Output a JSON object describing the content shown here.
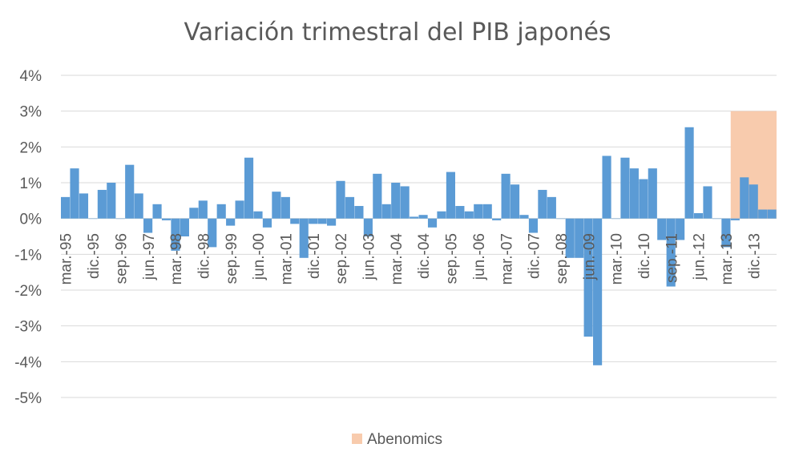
{
  "chart_data": {
    "type": "bar",
    "title": "Variación trimestral del PIB japonés",
    "xlabel": "",
    "ylabel": "",
    "ylim": [
      -5,
      4
    ],
    "y_ticks": [
      "4%",
      "3%",
      "2%",
      "1%",
      "0%",
      "-1%",
      "-2%",
      "-3%",
      "-4%",
      "-5%"
    ],
    "grid": true,
    "legend_position": "bottom",
    "x_tick_labels": [
      "mar.-95",
      "dic.-95",
      "sep.-96",
      "jun.-97",
      "mar.-98",
      "dic.-98",
      "sep.-99",
      "jun.-00",
      "mar.-01",
      "dic.-01",
      "sep.-02",
      "jun.-03",
      "mar.-04",
      "dic.-04",
      "sep.-05",
      "jun.-06",
      "mar.-07",
      "dic.-07",
      "sep.-08",
      "jun.-09",
      "mar.-10",
      "dic.-10",
      "sep.-11",
      "jun.-12",
      "mar.-13",
      "dic.-13"
    ],
    "series": [
      {
        "color": "#5b9bd5",
        "values": [
          0.6,
          1.4,
          0.7,
          0.0,
          0.8,
          1.0,
          0.0,
          1.5,
          0.7,
          -0.4,
          0.4,
          -0.05,
          -0.9,
          -0.5,
          0.3,
          0.5,
          -0.8,
          0.4,
          -0.2,
          0.5,
          1.7,
          0.2,
          -0.25,
          0.75,
          0.6,
          -0.15,
          -1.1,
          -0.15,
          -0.15,
          -0.2,
          1.05,
          0.6,
          0.35,
          -0.5,
          1.25,
          0.4,
          1.0,
          0.9,
          0.05,
          0.1,
          -0.25,
          0.2,
          1.3,
          0.35,
          0.2,
          0.4,
          0.4,
          -0.05,
          1.25,
          0.95,
          0.1,
          -0.4,
          0.8,
          0.6,
          0.0,
          -1.1,
          -1.1,
          -3.3,
          -4.1,
          1.75,
          0.0,
          1.7,
          1.4,
          1.1,
          1.4,
          -0.6,
          -1.9,
          -0.6,
          2.55,
          0.15,
          0.9,
          0.0,
          -0.8,
          -0.05,
          1.15,
          0.95,
          0.25,
          0.25
        ]
      },
      {
        "name": "Abenomics",
        "color": "#f8cbad",
        "start_index": 73,
        "end_index": 77,
        "value": 3
      }
    ]
  }
}
